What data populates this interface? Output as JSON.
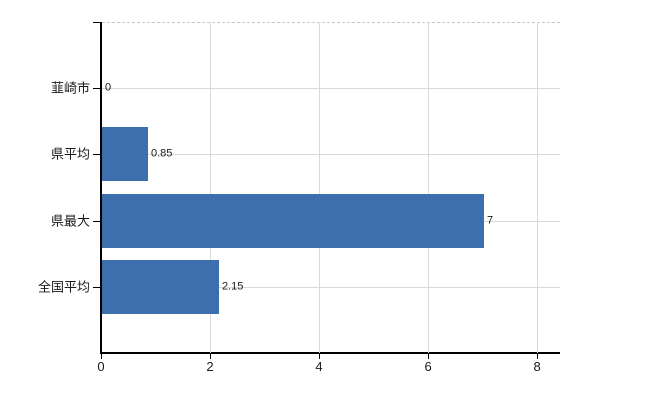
{
  "chart_data": {
    "type": "bar",
    "orientation": "horizontal",
    "title": "",
    "xlabel": "",
    "ylabel": "",
    "categories": [
      "韮崎市",
      "県平均",
      "県最大",
      "全国平均"
    ],
    "values": [
      0,
      0.85,
      7,
      2.15
    ],
    "value_labels": [
      "0",
      "0.85",
      "7",
      "2.15"
    ],
    "x_ticks": [
      "0",
      "2",
      "4",
      "6",
      "8"
    ],
    "x_tick_values": [
      0,
      2,
      4,
      6,
      8
    ],
    "xlim": [
      0,
      8.42
    ],
    "grid": "on",
    "legend": "none",
    "colors": {
      "bar": "#3d6fae",
      "grid": "#d9d9d9",
      "axis": "#000000",
      "text": "#1a1a1a",
      "plot_border_top": "#c9c9c9",
      "background": "#ffffff"
    }
  }
}
